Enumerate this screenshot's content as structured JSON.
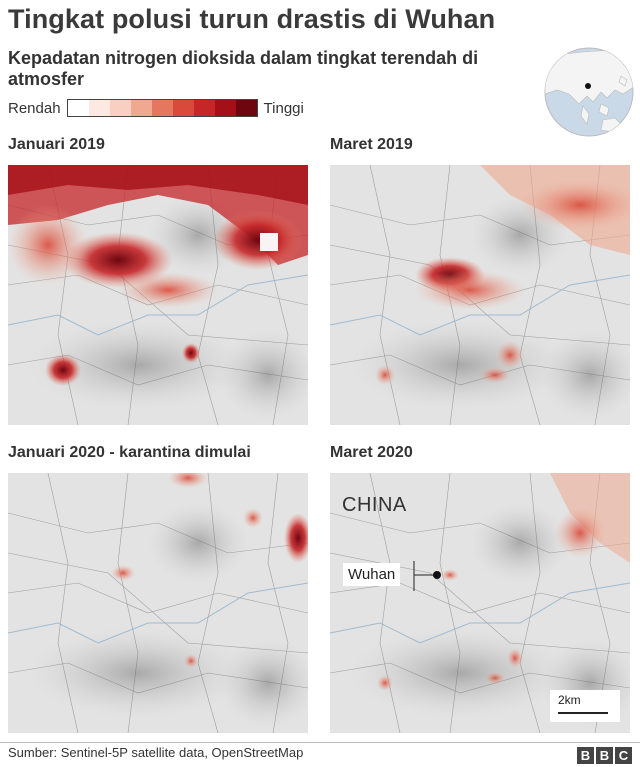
{
  "header": {
    "title": "Tingkat polusi turun drastis di Wuhan",
    "subtitle": "Kepadatan nitrogen dioksida dalam tingkat terendah di atmosfer"
  },
  "legend": {
    "low_label": "Rendah",
    "high_label": "Tinggi",
    "colors": [
      "#ffffff",
      "#fde9e2",
      "#f8cfc0",
      "#efa990",
      "#e6775f",
      "#d94a3a",
      "#c62628",
      "#a50f18",
      "#6e0610"
    ]
  },
  "panels": [
    {
      "title": "Januari 2019",
      "intensity": "very-high"
    },
    {
      "title": "Maret 2019",
      "intensity": "high"
    },
    {
      "title": "Januari 2020 - karantina dimulai",
      "intensity": "low"
    },
    {
      "title": "Maret 2020",
      "intensity": "low"
    }
  ],
  "annotations": {
    "country": "CHINA",
    "city": "Wuhan",
    "scale": "2km"
  },
  "footer": {
    "source": "Sumber: Sentinel-5P satellite data, OpenStreetMap",
    "brand": [
      "B",
      "B",
      "C"
    ]
  }
}
